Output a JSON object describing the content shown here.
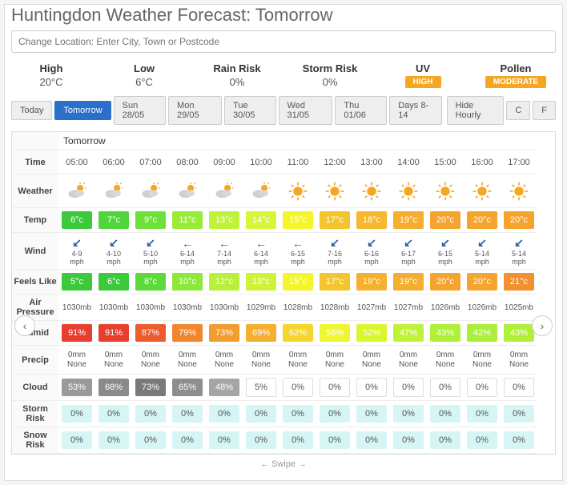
{
  "title": "Huntingdon Weather Forecast: Tomorrow",
  "locationPlaceholder": "Change Location: Enter City, Town or Postcode",
  "summary": {
    "high": {
      "label": "High",
      "value": "20°C"
    },
    "low": {
      "label": "Low",
      "value": "6°C"
    },
    "rainRisk": {
      "label": "Rain Risk",
      "value": "0%"
    },
    "stormRisk": {
      "label": "Storm Risk",
      "value": "0%"
    },
    "uv": {
      "label": "UV",
      "badge": "HIGH",
      "badgeColor": "#f5a623"
    },
    "pollen": {
      "label": "Pollen",
      "badge": "MODERATE",
      "badgeColor": "#f5a623"
    }
  },
  "tabs": [
    "Today",
    "Tomorrow",
    "Sun 28/05",
    "Mon 29/05",
    "Tue 30/05",
    "Wed 31/05",
    "Thu 01/06",
    "Days 8-14"
  ],
  "activeTab": 1,
  "rightTabs": [
    "Hide Hourly",
    "C",
    "F"
  ],
  "dayLabel": "Tomorrow",
  "rowLabels": {
    "time": "Time",
    "weather": "Weather",
    "temp": "Temp",
    "wind": "Wind",
    "feelsLike": "Feels Like",
    "airPressure": "Air Pressure",
    "humid": "Humid",
    "precip": "Precip",
    "cloud": "Cloud",
    "stormRisk": "Storm Risk",
    "snowRisk": "Snow Risk"
  },
  "swipeText": "← Swipe →",
  "hours": [
    {
      "time": "05:00",
      "weather": "partcloud",
      "temp": "6°c",
      "tempColor": "#3cc93c",
      "windDir": "↙",
      "windSpeed": "4-9",
      "feels": "5°c",
      "feelsColor": "#3cc93c",
      "pressure": "1030mb",
      "humid": "91%",
      "humidColor": "#e83e2e",
      "precip": "0mm",
      "precipDesc": "None",
      "cloud": "53%",
      "cloudColor": "#9a9a9a",
      "storm": "0%",
      "snow": "0%"
    },
    {
      "time": "06:00",
      "weather": "partcloud",
      "temp": "7°c",
      "tempColor": "#4fd63a",
      "windDir": "↙",
      "windSpeed": "4-10",
      "feels": "6°c",
      "feelsColor": "#3cc93c",
      "pressure": "1030mb",
      "humid": "91%",
      "humidColor": "#e83e2e",
      "precip": "0mm",
      "precipDesc": "None",
      "cloud": "68%",
      "cloudColor": "#8a8a8a",
      "storm": "0%",
      "snow": "0%"
    },
    {
      "time": "07:00",
      "weather": "partcloud",
      "temp": "9°c",
      "tempColor": "#6ee23a",
      "windDir": "↙",
      "windSpeed": "5-10",
      "feels": "8°c",
      "feelsColor": "#5ed93a",
      "pressure": "1030mb",
      "humid": "87%",
      "humidColor": "#ed5b2e",
      "precip": "0mm",
      "precipDesc": "None",
      "cloud": "73%",
      "cloudColor": "#7a7a7a",
      "storm": "0%",
      "snow": "0%"
    },
    {
      "time": "08:00",
      "weather": "partcloud",
      "temp": "11°c",
      "tempColor": "#9aec3a",
      "windDir": "←",
      "windSpeed": "6-14",
      "feels": "10°c",
      "feelsColor": "#8de83a",
      "pressure": "1030mb",
      "humid": "79%",
      "humidColor": "#f0862e",
      "precip": "0mm",
      "precipDesc": "None",
      "cloud": "65%",
      "cloudColor": "#8e8e8e",
      "storm": "0%",
      "snow": "0%"
    },
    {
      "time": "09:00",
      "weather": "partcloud",
      "temp": "13°c",
      "tempColor": "#c0f23a",
      "windDir": "←",
      "windSpeed": "7-14",
      "feels": "12°c",
      "feelsColor": "#b8f03a",
      "pressure": "1030mb",
      "humid": "73%",
      "humidColor": "#f29e2e",
      "precip": "0mm",
      "precipDesc": "None",
      "cloud": "48%",
      "cloudColor": "#a5a5a5",
      "storm": "0%",
      "snow": "0%"
    },
    {
      "time": "10:00",
      "weather": "partcloud",
      "temp": "14°c",
      "tempColor": "#d8f53a",
      "windDir": "←",
      "windSpeed": "6-14",
      "feels": "13°c",
      "feelsColor": "#d0f33a",
      "pressure": "1029mb",
      "humid": "69%",
      "humidColor": "#f4b02e",
      "precip": "0mm",
      "precipDesc": "None",
      "cloud": "5%",
      "cloudColor": "#ffffff",
      "storm": "0%",
      "snow": "0%"
    },
    {
      "time": "11:00",
      "weather": "sunny",
      "temp": "15°c",
      "tempColor": "#f5f52e",
      "windDir": "←",
      "windSpeed": "6-15",
      "feels": "15°c",
      "feelsColor": "#f5f52e",
      "pressure": "1028mb",
      "humid": "62%",
      "humidColor": "#f5d52e",
      "precip": "0mm",
      "precipDesc": "None",
      "cloud": "0%",
      "cloudColor": "#ffffff",
      "storm": "0%",
      "snow": "0%"
    },
    {
      "time": "12:00",
      "weather": "sunny",
      "temp": "17°c",
      "tempColor": "#f5c52e",
      "windDir": "↙",
      "windSpeed": "7-16",
      "feels": "17°c",
      "feelsColor": "#f5c52e",
      "pressure": "1028mb",
      "humid": "58%",
      "humidColor": "#eff52e",
      "precip": "0mm",
      "precipDesc": "None",
      "cloud": "0%",
      "cloudColor": "#ffffff",
      "storm": "0%",
      "snow": "0%"
    },
    {
      "time": "13:00",
      "weather": "sunny",
      "temp": "18°c",
      "tempColor": "#f5b82e",
      "windDir": "↙",
      "windSpeed": "6-16",
      "feels": "19°c",
      "feelsColor": "#f5b02e",
      "pressure": "1027mb",
      "humid": "52%",
      "humidColor": "#d8f52e",
      "precip": "0mm",
      "precipDesc": "None",
      "cloud": "0%",
      "cloudColor": "#ffffff",
      "storm": "0%",
      "snow": "0%"
    },
    {
      "time": "14:00",
      "weather": "sunny",
      "temp": "19°c",
      "tempColor": "#f5ae2e",
      "windDir": "↙",
      "windSpeed": "6-17",
      "feels": "19°c",
      "feelsColor": "#f5ae2e",
      "pressure": "1027mb",
      "humid": "47%",
      "humidColor": "#c0f23a",
      "precip": "0mm",
      "precipDesc": "None",
      "cloud": "0%",
      "cloudColor": "#ffffff",
      "storm": "0%",
      "snow": "0%"
    },
    {
      "time": "15:00",
      "weather": "sunny",
      "temp": "20°c",
      "tempColor": "#f5a42e",
      "windDir": "↙",
      "windSpeed": "6-15",
      "feels": "20°c",
      "feelsColor": "#f5a42e",
      "pressure": "1026mb",
      "humid": "43%",
      "humidColor": "#b0ef3a",
      "precip": "0mm",
      "precipDesc": "None",
      "cloud": "0%",
      "cloudColor": "#ffffff",
      "storm": "0%",
      "snow": "0%"
    },
    {
      "time": "16:00",
      "weather": "sunny",
      "temp": "20°c",
      "tempColor": "#f5a42e",
      "windDir": "↙",
      "windSpeed": "5-14",
      "feels": "20°c",
      "feelsColor": "#f5a42e",
      "pressure": "1026mb",
      "humid": "42%",
      "humidColor": "#acee3a",
      "precip": "0mm",
      "precipDesc": "None",
      "cloud": "0%",
      "cloudColor": "#ffffff",
      "storm": "0%",
      "snow": "0%"
    },
    {
      "time": "17:00",
      "weather": "sunny",
      "temp": "20°c",
      "tempColor": "#f5a42e",
      "windDir": "↙",
      "windSpeed": "5-14",
      "feels": "21°c",
      "feelsColor": "#f0902e",
      "pressure": "1025mb",
      "humid": "43%",
      "humidColor": "#b0ef3a",
      "precip": "0mm",
      "precipDesc": "None",
      "cloud": "0%",
      "cloudColor": "#ffffff",
      "storm": "0%",
      "snow": "0%"
    }
  ],
  "stormColor": "#d6f5f5",
  "snowColor": "#d6f5f5",
  "cloudTextDark": "#555",
  "cloudTextLight": "#fff"
}
